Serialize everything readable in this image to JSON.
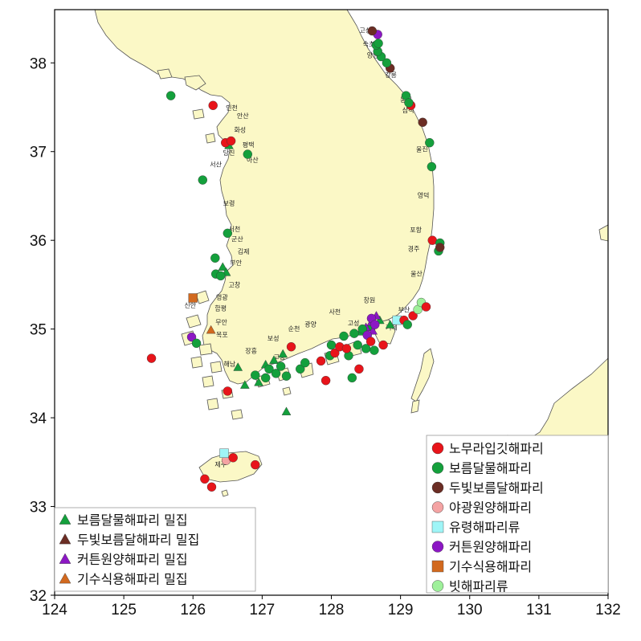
{
  "map": {
    "lon_range": [
      124,
      132
    ],
    "lat_range": [
      32,
      38.6
    ],
    "x_ticks": [
      124,
      125,
      126,
      127,
      128,
      129,
      130,
      131,
      132
    ],
    "y_ticks": [
      32,
      33,
      34,
      35,
      36,
      37,
      38
    ],
    "land_color": "#fbf8c6",
    "outline_color": "#555555"
  },
  "places": [
    {
      "name": "고성",
      "lon": 128.49,
      "lat": 38.34
    },
    {
      "name": "속초",
      "lon": 128.54,
      "lat": 38.19
    },
    {
      "name": "양양",
      "lon": 128.6,
      "lat": 38.06
    },
    {
      "name": "강릉",
      "lon": 128.86,
      "lat": 37.84
    },
    {
      "name": "동해",
      "lon": 129.08,
      "lat": 37.56
    },
    {
      "name": "삼척",
      "lon": 129.11,
      "lat": 37.44
    },
    {
      "name": "울진",
      "lon": 129.31,
      "lat": 37.0
    },
    {
      "name": "영덕",
      "lon": 129.33,
      "lat": 36.48
    },
    {
      "name": "포항",
      "lon": 129.22,
      "lat": 36.09
    },
    {
      "name": "경주",
      "lon": 129.19,
      "lat": 35.88
    },
    {
      "name": "울산",
      "lon": 129.23,
      "lat": 35.6
    },
    {
      "name": "부산",
      "lon": 129.05,
      "lat": 35.19
    },
    {
      "name": "거제",
      "lon": 128.87,
      "lat": 34.99
    },
    {
      "name": "창원",
      "lon": 128.55,
      "lat": 35.3
    },
    {
      "name": "고성",
      "lon": 128.32,
      "lat": 35.04
    },
    {
      "name": "사천",
      "lon": 128.05,
      "lat": 35.17
    },
    {
      "name": "광양",
      "lon": 127.7,
      "lat": 35.03
    },
    {
      "name": "순천",
      "lon": 127.46,
      "lat": 34.98
    },
    {
      "name": "보성",
      "lon": 127.16,
      "lat": 34.87
    },
    {
      "name": "고흥",
      "lon": 127.25,
      "lat": 34.66
    },
    {
      "name": "장흥",
      "lon": 126.84,
      "lat": 34.73
    },
    {
      "name": "해남",
      "lon": 126.53,
      "lat": 34.58
    },
    {
      "name": "목포",
      "lon": 126.42,
      "lat": 34.91
    },
    {
      "name": "무안",
      "lon": 126.41,
      "lat": 35.05
    },
    {
      "name": "신안",
      "lon": 125.96,
      "lat": 35.24
    },
    {
      "name": "영광",
      "lon": 126.42,
      "lat": 35.33
    },
    {
      "name": "함평",
      "lon": 126.4,
      "lat": 35.21
    },
    {
      "name": "고창",
      "lon": 126.6,
      "lat": 35.47
    },
    {
      "name": "부안",
      "lon": 126.62,
      "lat": 35.72
    },
    {
      "name": "김제",
      "lon": 126.73,
      "lat": 35.85
    },
    {
      "name": "군산",
      "lon": 126.64,
      "lat": 35.99
    },
    {
      "name": "서천",
      "lon": 126.6,
      "lat": 36.1
    },
    {
      "name": "보령",
      "lon": 126.52,
      "lat": 36.39
    },
    {
      "name": "서산",
      "lon": 126.33,
      "lat": 36.83
    },
    {
      "name": "당진",
      "lon": 126.52,
      "lat": 36.96
    },
    {
      "name": "아산",
      "lon": 126.86,
      "lat": 36.88
    },
    {
      "name": "평택",
      "lon": 126.8,
      "lat": 37.05
    },
    {
      "name": "화성",
      "lon": 126.68,
      "lat": 37.22
    },
    {
      "name": "안산",
      "lon": 126.72,
      "lat": 37.38
    },
    {
      "name": "인천",
      "lon": 126.56,
      "lat": 37.47
    },
    {
      "name": "제주",
      "lon": 126.4,
      "lat": 33.45
    }
  ],
  "legend_observed": {
    "items": [
      {
        "label": "노무라입깃해파리",
        "color": "#e8141a",
        "shape": "circle"
      },
      {
        "label": "보름달물해파리",
        "color": "#14a03c",
        "shape": "circle"
      },
      {
        "label": "두빛보름달해파리",
        "color": "#6b2d24",
        "shape": "circle"
      },
      {
        "label": "야광원양해파리",
        "color": "#f4a3a3",
        "shape": "circle"
      },
      {
        "label": "유령해파리류",
        "color": "#9ff5f7",
        "shape": "square"
      },
      {
        "label": "커튼원양해파리",
        "color": "#8c17c4",
        "shape": "circle"
      },
      {
        "label": "기수식용해파리",
        "color": "#d2691e",
        "shape": "square"
      },
      {
        "label": "빗해파리류",
        "color": "#9ef09a",
        "shape": "circle"
      }
    ]
  },
  "legend_dense": {
    "items": [
      {
        "label": "보름달물해파리 밀집",
        "color": "#14a03c",
        "shape": "triangle"
      },
      {
        "label": "두빛보름달해파리 밀집",
        "color": "#6b2d24",
        "shape": "triangle"
      },
      {
        "label": "커튼원양해파리 밀집",
        "color": "#8c17c4",
        "shape": "triangle"
      },
      {
        "label": "기수식용해파리 밀집",
        "color": "#d2691e",
        "shape": "triangle"
      }
    ]
  },
  "observations": [
    {
      "species": "보름달물해파리",
      "lon": 125.68,
      "lat": 37.63
    },
    {
      "species": "노무라입깃해파리",
      "lon": 126.29,
      "lat": 37.52
    },
    {
      "species": "노무라입깃해파리",
      "lon": 126.47,
      "lat": 37.1
    },
    {
      "species": "노무라입깃해파리",
      "lon": 126.55,
      "lat": 37.12
    },
    {
      "species": "보름달물해파리",
      "lon": 126.79,
      "lat": 36.97
    },
    {
      "species": "보름달물해파리",
      "lon": 126.14,
      "lat": 36.68
    },
    {
      "species": "보름달물해파리",
      "lon": 126.5,
      "lat": 36.08
    },
    {
      "species": "보름달물해파리",
      "lon": 126.32,
      "lat": 35.8
    },
    {
      "species": "보름달물해파리",
      "lon": 126.33,
      "lat": 35.62
    },
    {
      "species": "보름달물해파리",
      "lon": 126.4,
      "lat": 35.6
    },
    {
      "species": "노무라입깃해파리",
      "lon": 125.4,
      "lat": 34.67
    },
    {
      "species": "커튼원양해파리",
      "lon": 125.98,
      "lat": 34.91
    },
    {
      "species": "보름달물해파리",
      "lon": 126.05,
      "lat": 34.84
    },
    {
      "species": "노무라입깃해파리",
      "lon": 126.5,
      "lat": 34.3
    },
    {
      "species": "보름달물해파리",
      "lon": 126.9,
      "lat": 34.48
    },
    {
      "species": "보름달물해파리",
      "lon": 127.05,
      "lat": 34.45
    },
    {
      "species": "보름달물해파리",
      "lon": 127.1,
      "lat": 34.55
    },
    {
      "species": "보름달물해파리",
      "lon": 127.2,
      "lat": 34.5
    },
    {
      "species": "보름달물해파리",
      "lon": 127.27,
      "lat": 34.58
    },
    {
      "species": "보름달물해파리",
      "lon": 127.35,
      "lat": 34.47
    },
    {
      "species": "노무라입깃해파리",
      "lon": 127.42,
      "lat": 34.8
    },
    {
      "species": "보름달물해파리",
      "lon": 127.55,
      "lat": 34.55
    },
    {
      "species": "보름달물해파리",
      "lon": 127.62,
      "lat": 34.62
    },
    {
      "species": "노무라입깃해파리",
      "lon": 127.85,
      "lat": 34.64
    },
    {
      "species": "노무라입깃해파리",
      "lon": 127.92,
      "lat": 34.42
    },
    {
      "species": "보름달물해파리",
      "lon": 127.98,
      "lat": 34.7
    },
    {
      "species": "노무라입깃해파리",
      "lon": 128.05,
      "lat": 34.73
    },
    {
      "species": "보름달물해파리",
      "lon": 128.0,
      "lat": 34.82
    },
    {
      "species": "노무라입깃해파리",
      "lon": 128.12,
      "lat": 34.8
    },
    {
      "species": "보름달물해파리",
      "lon": 128.18,
      "lat": 34.92
    },
    {
      "species": "보름달물해파리",
      "lon": 128.25,
      "lat": 34.7
    },
    {
      "species": "노무라입깃해파리",
      "lon": 128.22,
      "lat": 34.78
    },
    {
      "species": "보름달물해파리",
      "lon": 128.3,
      "lat": 34.45
    },
    {
      "species": "노무라입깃해파리",
      "lon": 128.4,
      "lat": 34.55
    },
    {
      "species": "보름달물해파리",
      "lon": 128.33,
      "lat": 34.95
    },
    {
      "species": "보름달물해파리",
      "lon": 128.38,
      "lat": 34.82
    },
    {
      "species": "보름달물해파리",
      "lon": 128.45,
      "lat": 35.0
    },
    {
      "species": "보름달물해파리",
      "lon": 128.5,
      "lat": 34.78
    },
    {
      "species": "커튼원양해파리",
      "lon": 128.52,
      "lat": 34.93
    },
    {
      "species": "노무라입깃해파리",
      "lon": 128.57,
      "lat": 34.86
    },
    {
      "species": "커튼원양해파리",
      "lon": 128.58,
      "lat": 35.12
    },
    {
      "species": "커튼원양해파리",
      "lon": 128.63,
      "lat": 35.05
    },
    {
      "species": "보름달물해파리",
      "lon": 128.62,
      "lat": 34.76
    },
    {
      "species": "노무라입깃해파리",
      "lon": 128.75,
      "lat": 34.82
    },
    {
      "species": "유령해파리류",
      "lon": 128.95,
      "lat": 35.1
    },
    {
      "species": "노무라입깃해파리",
      "lon": 129.05,
      "lat": 35.1
    },
    {
      "species": "보름달물해파리",
      "lon": 129.1,
      "lat": 35.05
    },
    {
      "species": "노무라입깃해파리",
      "lon": 129.18,
      "lat": 35.15
    },
    {
      "species": "빗해파리류",
      "lon": 129.25,
      "lat": 35.22
    },
    {
      "species": "빗해파리류",
      "lon": 129.3,
      "lat": 35.3
    },
    {
      "species": "노무라입깃해파리",
      "lon": 129.37,
      "lat": 35.25
    },
    {
      "species": "노무라입깃해파리",
      "lon": 129.46,
      "lat": 36.0
    },
    {
      "species": "보름달물해파리",
      "lon": 129.57,
      "lat": 35.97
    },
    {
      "species": "보름달물해파리",
      "lon": 129.55,
      "lat": 35.88
    },
    {
      "species": "두빛보름달해파리",
      "lon": 129.57,
      "lat": 35.92
    },
    {
      "species": "보름달물해파리",
      "lon": 129.45,
      "lat": 36.83
    },
    {
      "species": "보름달물해파리",
      "lon": 129.42,
      "lat": 37.1
    },
    {
      "species": "두빛보름달해파리",
      "lon": 129.32,
      "lat": 37.33
    },
    {
      "species": "노무라입깃해파리",
      "lon": 129.15,
      "lat": 37.52
    },
    {
      "species": "보름달물해파리",
      "lon": 129.08,
      "lat": 37.63
    },
    {
      "species": "보름달물해파리",
      "lon": 129.12,
      "lat": 37.55
    },
    {
      "species": "두빛보름달해파리",
      "lon": 128.85,
      "lat": 37.94
    },
    {
      "species": "보름달물해파리",
      "lon": 128.8,
      "lat": 38.0
    },
    {
      "species": "보름달물해파리",
      "lon": 128.72,
      "lat": 38.07
    },
    {
      "species": "보름달물해파리",
      "lon": 128.67,
      "lat": 38.13
    },
    {
      "species": "보름달물해파리",
      "lon": 128.65,
      "lat": 38.2
    },
    {
      "species": "보름달물해파리",
      "lon": 128.68,
      "lat": 38.22
    },
    {
      "species": "커튼원양해파리",
      "lon": 128.67,
      "lat": 38.32
    },
    {
      "species": "두빛보름달해파리",
      "lon": 128.59,
      "lat": 38.36
    },
    {
      "species": "야광원양해파리",
      "lon": 126.48,
      "lat": 33.52
    },
    {
      "species": "유령해파리류",
      "lon": 126.45,
      "lat": 33.6
    },
    {
      "species": "노무라입깃해파리",
      "lon": 126.58,
      "lat": 33.55
    },
    {
      "species": "노무라입깃해파리",
      "lon": 126.9,
      "lat": 33.47
    },
    {
      "species": "노무라입깃해파리",
      "lon": 126.17,
      "lat": 33.31
    },
    {
      "species": "노무라입깃해파리",
      "lon": 126.27,
      "lat": 33.22
    },
    {
      "species": "기수식용해파리",
      "lon": 126.0,
      "lat": 35.35
    }
  ],
  "dense": [
    {
      "species": "보름달물해파리 밀집",
      "lon": 126.52,
      "lat": 37.07
    },
    {
      "species": "보름달물해파리 밀집",
      "lon": 126.43,
      "lat": 35.7
    },
    {
      "species": "보름달물해파리 밀집",
      "lon": 126.48,
      "lat": 35.64
    },
    {
      "species": "보름달물해파리 밀집",
      "lon": 126.65,
      "lat": 34.57
    },
    {
      "species": "보름달물해파리 밀집",
      "lon": 126.75,
      "lat": 34.37
    },
    {
      "species": "보름달물해파리 밀집",
      "lon": 126.95,
      "lat": 34.4
    },
    {
      "species": "보름달물해파리 밀집",
      "lon": 127.05,
      "lat": 34.6
    },
    {
      "species": "보름달물해파리 밀집",
      "lon": 127.17,
      "lat": 34.65
    },
    {
      "species": "보름달물해파리 밀집",
      "lon": 127.3,
      "lat": 34.72
    },
    {
      "species": "보름달물해파리 밀집",
      "lon": 127.35,
      "lat": 34.07
    },
    {
      "species": "보름달물해파리 밀집",
      "lon": 128.42,
      "lat": 34.97
    },
    {
      "species": "보름달물해파리 밀집",
      "lon": 128.55,
      "lat": 35.02
    },
    {
      "species": "보름달물해파리 밀집",
      "lon": 128.7,
      "lat": 35.1
    },
    {
      "species": "보름달물해파리 밀집",
      "lon": 128.85,
      "lat": 35.05
    },
    {
      "species": "커튼원양해파리 밀집",
      "lon": 128.58,
      "lat": 35.08
    },
    {
      "species": "커튼원양해파리 밀집",
      "lon": 128.65,
      "lat": 35.15
    },
    {
      "species": "커튼원양해파리 밀집",
      "lon": 128.6,
      "lat": 34.98
    },
    {
      "species": "커튼원양해파리 밀집",
      "lon": 128.5,
      "lat": 35.02
    },
    {
      "species": "기수식용해파리 밀집",
      "lon": 126.26,
      "lat": 34.99
    }
  ]
}
